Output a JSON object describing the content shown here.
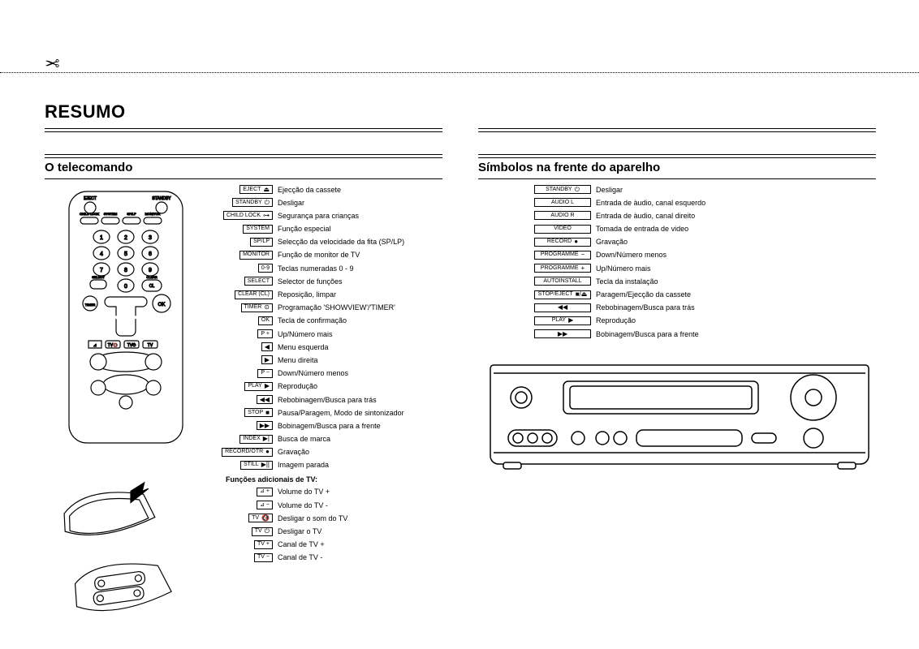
{
  "cutline": {
    "scissors_glyph": "✂"
  },
  "title": "RESUMO",
  "left": {
    "heading": "O telecomando",
    "tv_header": "Funções adicionais de TV:",
    "items": [
      {
        "label": "EJECT",
        "sym": "⏏",
        "desc": "Ejecção da cassete"
      },
      {
        "label": "STANDBY",
        "sym": "⏻",
        "desc": "Desligar"
      },
      {
        "label": "CHILD LOCK",
        "sym": "⊶",
        "desc": "Segurança para crianças"
      },
      {
        "label": "SYSTEM",
        "sym": "",
        "desc": "Função especial"
      },
      {
        "label": "SP/LP",
        "sym": "",
        "desc": "Selecção da velocidade da fita (SP/LP)"
      },
      {
        "label": "MONITOR",
        "sym": "",
        "desc": "Função de monitor de TV"
      },
      {
        "label": "0-9",
        "sym": "",
        "desc": "Teclas numeradas 0 - 9"
      },
      {
        "label": "SELECT",
        "sym": "",
        "desc": "Selector de funções"
      },
      {
        "label": "CLEAR (CL)",
        "sym": "",
        "desc": "Reposição, limpar"
      },
      {
        "label": "TIMER",
        "sym": "⊙",
        "desc": "Programação 'SHOWVIEW'/'TIMER'"
      },
      {
        "label": "OK",
        "sym": "",
        "desc": "Tecla de confirmação"
      },
      {
        "label": "P +",
        "sym": "",
        "desc": "Up/Número mais"
      },
      {
        "label": "",
        "sym": "◀",
        "desc": "Menu esquerda"
      },
      {
        "label": "",
        "sym": "▶",
        "desc": "Menu direita"
      },
      {
        "label": "P −",
        "sym": "",
        "desc": "Down/Número menos"
      },
      {
        "label": "PLAY",
        "sym": "▶",
        "desc": "Reprodução"
      },
      {
        "label": "",
        "sym": "◀◀",
        "desc": "Rebobinagem/Busca para trás"
      },
      {
        "label": "STOP",
        "sym": "■",
        "desc": "Pausa/Paragem, Modo de sintonizador"
      },
      {
        "label": "",
        "sym": "▶▶",
        "desc": "Bobinagem/Busca para a frente"
      },
      {
        "label": "INDEX",
        "sym": "▶|",
        "desc": "Busca de marca"
      },
      {
        "label": "RECORD/OTR",
        "sym": "●",
        "desc": "Gravação"
      },
      {
        "label": "STILL",
        "sym": "▶||",
        "desc": "Imagem parada"
      }
    ],
    "tv_items": [
      {
        "label": "⊿ +",
        "sym": "",
        "desc": "Volume do TV +"
      },
      {
        "label": "⊿ −",
        "sym": "",
        "desc": "Volume do TV -"
      },
      {
        "label": "TV",
        "sym": "🔇",
        "desc": "Desligar o som do TV"
      },
      {
        "label": "TV",
        "sym": "⏻",
        "desc": "Desligar o TV"
      },
      {
        "label": "TV +",
        "sym": "",
        "desc": "Canal de TV +"
      },
      {
        "label": "TV −",
        "sym": "",
        "desc": "Canal de TV -"
      }
    ]
  },
  "right": {
    "heading": "Símbolos na frente do aparelho",
    "items": [
      {
        "label": "STANDBY",
        "sym": "⏻",
        "desc": "Desligar"
      },
      {
        "label": "AUDIO L",
        "sym": "",
        "desc": "Entrada de àudio, canal esquerdo"
      },
      {
        "label": "AUDIO R",
        "sym": "",
        "desc": "Entrada de àudio, canal direito"
      },
      {
        "label": "VIDEO",
        "sym": "",
        "desc": "Tomada de entrada de video"
      },
      {
        "label": "RECORD",
        "sym": "●",
        "desc": "Gravação"
      },
      {
        "label": "PROGRAMME",
        "sym": "−",
        "desc": "Down/Número menos"
      },
      {
        "label": "PROGRAMME",
        "sym": "+",
        "desc": "Up/Número mais"
      },
      {
        "label": "AUTOINSTALL",
        "sym": "",
        "desc": "Tecla da instalação"
      },
      {
        "label": "STOP/EJECT",
        "sym": "■/⏏",
        "desc": "Paragem/Ejecção da cassete"
      },
      {
        "label": "",
        "sym": "◀◀",
        "desc": "Rebobinagem/Busca para trás"
      },
      {
        "label": "PLAY",
        "sym": "▶",
        "desc": "Reprodução"
      },
      {
        "label": "",
        "sym": "▶▶",
        "desc": "Bobinagem/Busca para a frente"
      }
    ]
  },
  "style": {
    "page_bg": "#ffffff",
    "text_color": "#000000",
    "label_border": "#000000",
    "title_fontsize": 22,
    "section_fontsize": 15,
    "legend_fontsize": 9,
    "label_fontsize": 7
  }
}
